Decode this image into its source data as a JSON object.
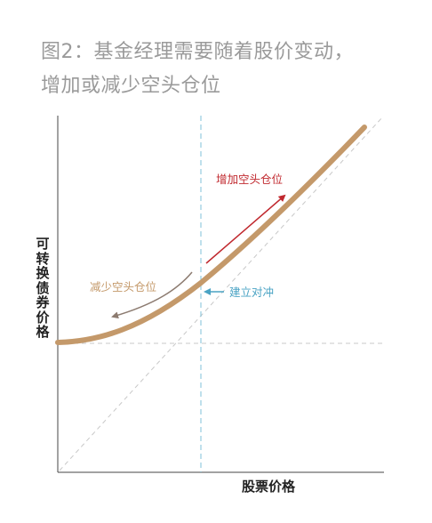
{
  "title": {
    "line1": "图2：基金经理需要随着股价变动，",
    "line2": "增加或减少空头仓位"
  },
  "chart_data": {
    "type": "line",
    "xlabel": "股票价格",
    "ylabel": "可转换债券价格",
    "series": [
      {
        "values_description": "convex curve starting at bond floor, approaching 45-degree line"
      }
    ],
    "annotations": {
      "increase_short": "增加空头仓位",
      "decrease_short": "减少空头仓位",
      "establish_hedge": "建立对冲"
    },
    "colors": {
      "curve": "#c4996a",
      "increase_arrow": "#c0282e",
      "decrease_arrow": "#8c7b70",
      "hedge_arrow": "#4aa3c4",
      "reference_lines": "#c8c8c8",
      "vertical_dash": "#7fc0d8"
    }
  }
}
